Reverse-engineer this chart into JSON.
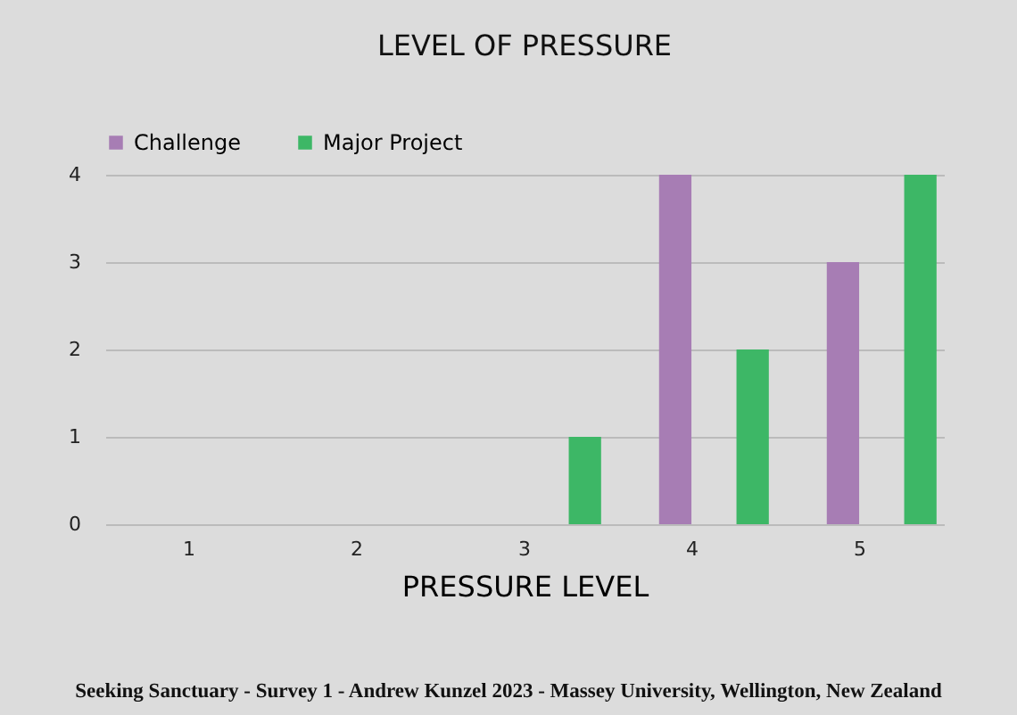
{
  "chart_data": {
    "type": "bar",
    "title": "LEVEL OF PRESSURE",
    "xlabel": "PRESSURE   LEVEL",
    "categories": [
      "1",
      "2",
      "3",
      "4",
      "5"
    ],
    "series": [
      {
        "name": "Challenge",
        "color": "#a77db4",
        "values": [
          0,
          0,
          0,
          4,
          3
        ]
      },
      {
        "name": "Major Project",
        "color": "#3db766",
        "values": [
          0,
          0,
          1,
          2,
          4
        ]
      }
    ],
    "ylim": [
      0,
      4
    ],
    "yticks": [
      0,
      1,
      2,
      3,
      4
    ],
    "grid": "y",
    "legend": "top",
    "annotations": [
      "Seeking Sanctuary - Survey 1 - Andrew Kunzel 2023 - Massey University, Wellington, New Zealand"
    ]
  }
}
